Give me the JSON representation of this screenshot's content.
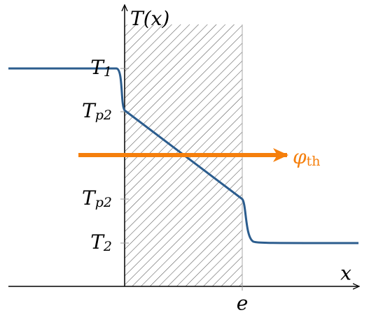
{
  "axes": {
    "y_label": {
      "symbol": "T",
      "argument": "(x)"
    },
    "x_label": "x",
    "wall_thickness": "e"
  },
  "levels": [
    {
      "symbol": "T",
      "subscript": "1"
    },
    {
      "symbol": "T",
      "subscript": "p2"
    },
    {
      "symbol": "T",
      "subscript": "p2"
    },
    {
      "symbol": "T",
      "subscript": "2"
    }
  ],
  "flux": {
    "symbol": "φ",
    "subscript": "th"
  }
}
